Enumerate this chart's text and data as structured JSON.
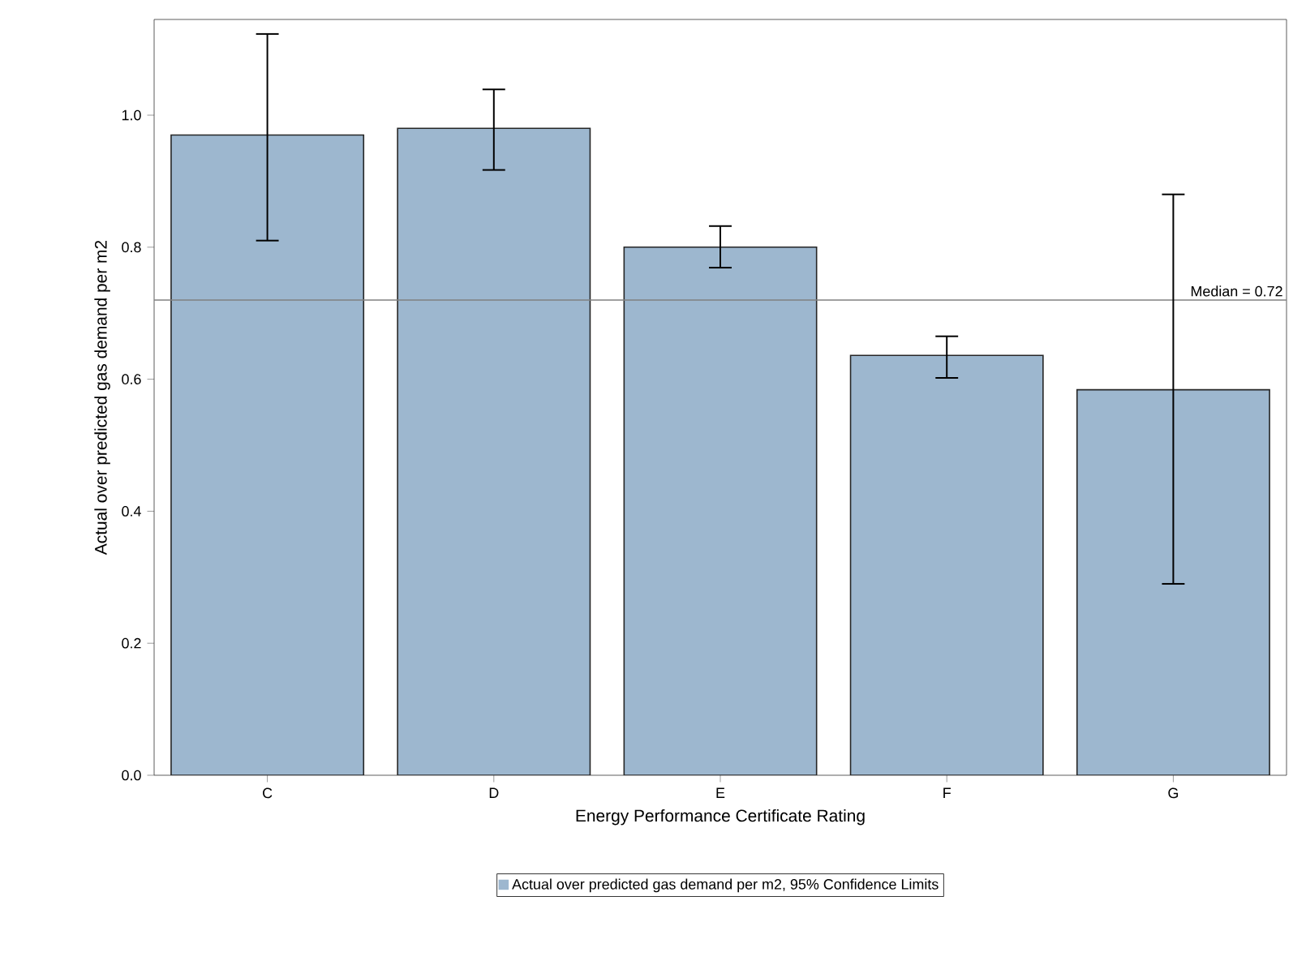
{
  "chart_data": {
    "type": "bar",
    "xlabel": "Energy Performance Certificate Rating",
    "ylabel": "Actual over predicted gas demand per m2",
    "categories": [
      "C",
      "D",
      "E",
      "F",
      "G"
    ],
    "series": [
      {
        "name": "Actual over predicted gas demand per m2, 95% Confidence Limits",
        "color": "#9db7cf",
        "values": [
          0.97,
          0.98,
          0.8,
          0.636,
          0.584
        ],
        "errors": [
          [
            0.81,
            1.123
          ],
          [
            0.917,
            1.039
          ],
          [
            0.769,
            0.832
          ],
          [
            0.602,
            0.665
          ],
          [
            0.29,
            0.88
          ]
        ]
      }
    ],
    "ylim": [
      0,
      1.145
    ],
    "yticks": [
      {
        "value": 0,
        "label": "0.0"
      },
      0.2,
      0.4,
      0.6,
      0.8,
      {
        "value": 1,
        "label": "1.0"
      }
    ],
    "ref_lines": [
      {
        "axis": "y",
        "value": 0.72,
        "label": "Median = 0.72",
        "color": "#808080"
      }
    ],
    "legend": "bottom",
    "grid": false
  }
}
